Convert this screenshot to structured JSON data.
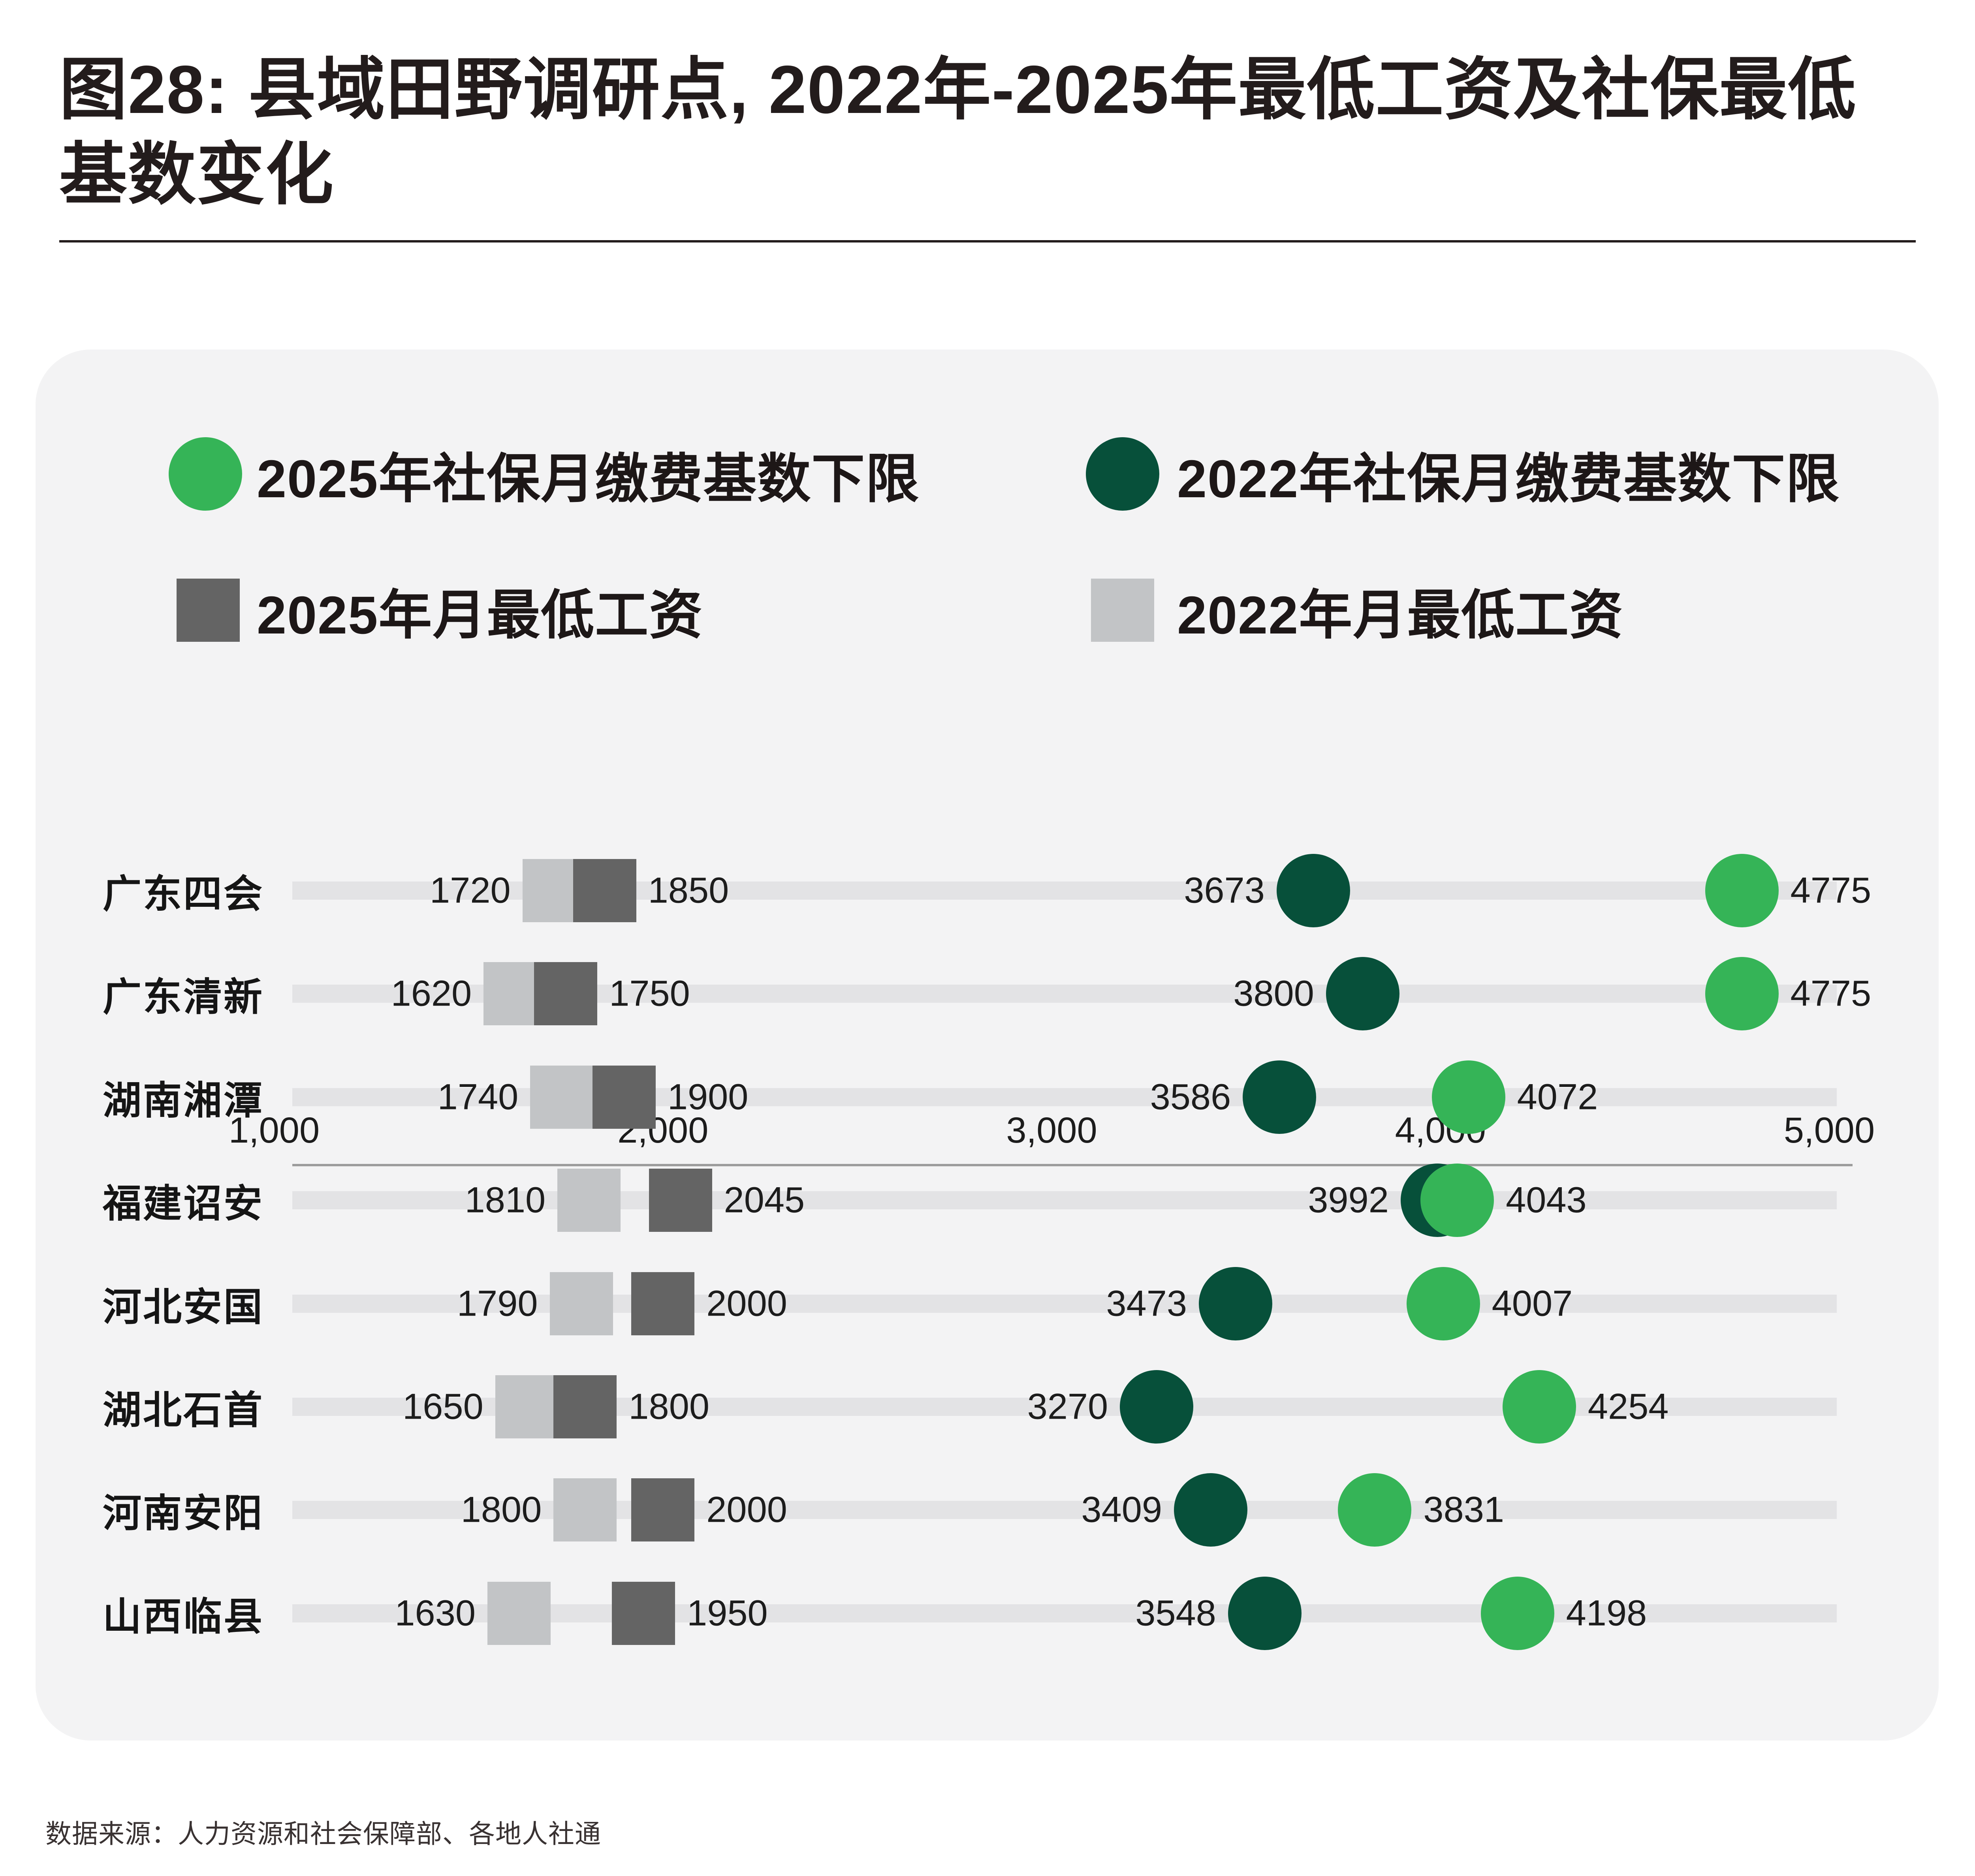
{
  "header": {
    "title": "图28: 县域田野调研点, 2022年-2025年最低工资及社保最低基数变化"
  },
  "footer": {
    "source": "数据来源：人力资源和社会保障部、各地人社通"
  },
  "colors": {
    "page_background": "#ffffff",
    "panel_background": "#f3f3f4",
    "track": "#e3e3e5",
    "axis_line": "#9c9c9c",
    "title_text": "#231c1c",
    "label_text": "#1c1c1c",
    "green_2025": "#35b457",
    "green_2022": "#07503a",
    "gray_2025": "#646464",
    "gray_2022": "#c2c4c6"
  },
  "legend": {
    "items": [
      {
        "id": "ss-2025",
        "label": "2025年社保月缴费基数下限",
        "marker": "circle",
        "color": "#35b457"
      },
      {
        "id": "ss-2022",
        "label": "2022年社保月缴费基数下限",
        "marker": "circle",
        "color": "#07503a"
      },
      {
        "id": "wage-2025",
        "label": "2025年月最低工资",
        "marker": "square",
        "color": "#646464"
      },
      {
        "id": "wage-2022",
        "label": "2022年月最低工资",
        "marker": "square",
        "color": "#c2c4c6"
      }
    ]
  },
  "chart_data": {
    "type": "scatter",
    "subtype": "horizontal-dot-plot",
    "title": "图28: 县域田野调研点, 2022年-2025年最低工资及社保最低基数变化",
    "categories": [
      "广东四会",
      "广东清新",
      "湖南湘潭",
      "福建诏安",
      "河北安国",
      "湖北石首",
      "河南安阳",
      "山西临县"
    ],
    "series": [
      {
        "id": "wage-2022",
        "name": "2022年月最低工资",
        "marker": "square",
        "color": "#c2c4c6",
        "label_side": "left",
        "values": [
          1720,
          1620,
          1740,
          1810,
          1790,
          1650,
          1800,
          1630
        ]
      },
      {
        "id": "wage-2025",
        "name": "2025年月最低工资",
        "marker": "square",
        "color": "#646464",
        "label_side": "right",
        "values": [
          1850,
          1750,
          1900,
          2045,
          2000,
          1800,
          2000,
          1950
        ]
      },
      {
        "id": "ss-2022",
        "name": "2022年社保月缴费基数下限",
        "marker": "circle",
        "color": "#07503a",
        "label_side": "left",
        "values": [
          3673,
          3800,
          3586,
          3992,
          3473,
          3270,
          3409,
          3548
        ]
      },
      {
        "id": "ss-2025",
        "name": "2025年社保月缴费基数下限",
        "marker": "circle",
        "color": "#35b457",
        "label_side": "right",
        "values": [
          4775,
          4775,
          4072,
          4043,
          4007,
          4254,
          3831,
          4198
        ]
      }
    ],
    "xlim": [
      1000,
      5000
    ],
    "xticks": [
      {
        "value": 1000,
        "label": "1,000"
      },
      {
        "value": 2000,
        "label": "2,000"
      },
      {
        "value": 3000,
        "label": "3,000"
      },
      {
        "value": 4000,
        "label": "4,000"
      },
      {
        "value": 5000,
        "label": "5,000"
      }
    ],
    "grid": false,
    "legend_position": "top",
    "value_labels_shown": true
  }
}
